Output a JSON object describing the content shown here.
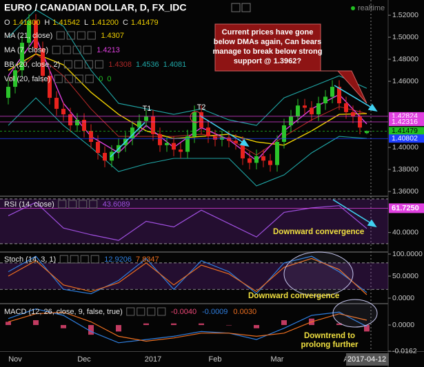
{
  "chart_data": [
    {
      "type": "candlestick",
      "title": "EURO / CANADIAN DOLLAR, D, FX_IDC",
      "status": "realtime",
      "ohlc_legend": [
        {
          "key": "O",
          "text": "1.41300"
        },
        {
          "key": "H",
          "text": "1.41542"
        },
        {
          "key": "L",
          "text": "1.41200"
        },
        {
          "key": "C",
          "text": "1.41479"
        }
      ],
      "categories": [
        null,
        "Nov",
        null,
        null,
        null,
        null,
        null,
        null,
        null,
        null,
        null,
        "Dec",
        null,
        null,
        null,
        null,
        null,
        null,
        null,
        null,
        null,
        "2017",
        null,
        null,
        null,
        null,
        null,
        null,
        null,
        null,
        "Feb",
        null,
        null,
        null,
        null,
        null,
        null,
        null,
        null,
        "Mar",
        null,
        null,
        null,
        null,
        null,
        null,
        null,
        null,
        null,
        "A",
        null,
        null,
        "2017-04-12"
      ],
      "open": [
        1.445,
        1.455,
        1.47,
        1.495,
        1.515,
        1.49,
        1.465,
        1.445,
        1.435,
        1.43,
        1.42,
        1.425,
        1.415,
        1.405,
        1.395,
        1.388,
        1.396,
        1.402,
        1.408,
        1.418,
        1.424,
        1.428,
        1.412,
        1.402,
        1.404,
        1.398,
        1.396,
        1.41,
        1.432,
        1.418,
        1.41,
        1.407,
        1.409,
        1.406,
        1.404,
        1.39,
        1.386,
        1.392,
        1.388,
        1.384,
        1.405,
        1.42,
        1.428,
        1.438,
        1.436,
        1.43,
        1.44,
        1.446,
        1.455,
        1.44,
        1.432,
        1.428,
        1.413
      ],
      "high": [
        1.461,
        1.476,
        1.501,
        1.521,
        1.521,
        1.496,
        1.471,
        1.451,
        1.441,
        1.436,
        1.431,
        1.431,
        1.421,
        1.411,
        1.401,
        1.402,
        1.408,
        1.414,
        1.424,
        1.43,
        1.434,
        1.434,
        1.418,
        1.41,
        1.41,
        1.404,
        1.416,
        1.438,
        1.438,
        1.424,
        1.416,
        1.415,
        1.415,
        1.412,
        1.41,
        1.396,
        1.398,
        1.398,
        1.394,
        1.411,
        1.426,
        1.434,
        1.444,
        1.444,
        1.442,
        1.446,
        1.452,
        1.461,
        1.461,
        1.446,
        1.438,
        1.434,
        1.41542
      ],
      "low": [
        1.439,
        1.449,
        1.464,
        1.489,
        1.484,
        1.459,
        1.439,
        1.429,
        1.424,
        1.414,
        1.414,
        1.409,
        1.399,
        1.389,
        1.382,
        1.382,
        1.39,
        1.396,
        1.402,
        1.412,
        1.418,
        1.406,
        1.396,
        1.396,
        1.392,
        1.39,
        1.39,
        1.404,
        1.412,
        1.404,
        1.401,
        1.401,
        1.4,
        1.398,
        1.384,
        1.38,
        1.38,
        1.382,
        1.378,
        1.378,
        1.399,
        1.414,
        1.422,
        1.43,
        1.424,
        1.424,
        1.434,
        1.44,
        1.434,
        1.426,
        1.422,
        1.412,
        1.412
      ],
      "close": [
        1.455,
        1.47,
        1.495,
        1.515,
        1.49,
        1.465,
        1.445,
        1.435,
        1.43,
        1.42,
        1.425,
        1.415,
        1.405,
        1.395,
        1.388,
        1.396,
        1.402,
        1.408,
        1.418,
        1.424,
        1.428,
        1.412,
        1.402,
        1.404,
        1.398,
        1.396,
        1.41,
        1.432,
        1.418,
        1.41,
        1.407,
        1.409,
        1.406,
        1.404,
        1.39,
        1.386,
        1.392,
        1.388,
        1.384,
        1.405,
        1.42,
        1.428,
        1.438,
        1.436,
        1.43,
        1.44,
        1.446,
        1.455,
        1.44,
        1.432,
        1.428,
        1.418,
        1.41479
      ],
      "up_color": "#2bc42b",
      "down_color": "#e8231e",
      "ylim": [
        1.3569,
        1.5338
      ],
      "yticks": [
        {
          "value": 1.52,
          "label": "1.52000"
        },
        {
          "value": 1.5,
          "label": "1.50000"
        },
        {
          "value": 1.48,
          "label": "1.48000"
        },
        {
          "value": 1.46,
          "label": "1.46000"
        },
        {
          "value": 1.4,
          "label": "1.40000"
        },
        {
          "value": 1.38,
          "label": "1.38000"
        },
        {
          "value": 1.36,
          "label": "1.36000"
        }
      ],
      "price_markers": [
        {
          "value": 1.42824,
          "label": "1.42824",
          "color": "#e040e0"
        },
        {
          "value": 1.42316,
          "label": "1.42316",
          "color": "#e040e0"
        },
        {
          "value": 1.41479,
          "label": "1.41479",
          "color": "#22c022"
        },
        {
          "value": 1.40802,
          "label": "1.40802",
          "color": "#2040ff"
        }
      ],
      "overlays": [
        {
          "name": "MA (21, close)",
          "color": "#f0d000",
          "values": [
            1.47,
            1.485,
            1.475,
            1.45,
            1.43,
            1.415,
            1.408,
            1.41,
            1.412,
            1.405,
            1.402,
            1.415,
            1.43,
            1.4307
          ],
          "legend_values": [
            "1.4307"
          ]
        },
        {
          "name": "MA (7, close)",
          "color": "#e040e0",
          "values": [
            1.465,
            1.5,
            1.44,
            1.41,
            1.395,
            1.42,
            1.4,
            1.418,
            1.407,
            1.388,
            1.415,
            1.435,
            1.448,
            1.4213
          ],
          "legend_values": [
            "1.4213"
          ]
        }
      ],
      "bands": {
        "name": "BB (20, close, 2)",
        "lines": [
          {
            "color": "#b02828",
            "values": [
              1.46,
              1.485,
              1.465,
              1.435,
              1.41,
              1.41,
              1.41,
              1.412,
              1.408,
              1.393,
              1.41,
              1.425,
              1.437,
              1.4308
            ],
            "legend": "1.4308"
          },
          {
            "color": "#20a8a8",
            "values": [
              1.5,
              1.525,
              1.51,
              1.47,
              1.44,
              1.435,
              1.43,
              1.435,
              1.425,
              1.42,
              1.445,
              1.455,
              1.465,
              1.4536
            ],
            "legend": "1.4536"
          },
          {
            "color": "#20a8a8",
            "values": [
              1.42,
              1.445,
              1.42,
              1.4,
              1.378,
              1.385,
              1.39,
              1.39,
              1.39,
              1.365,
              1.375,
              1.395,
              1.41,
              1.4081
            ],
            "legend": "1.4081"
          }
        ]
      },
      "volume": {
        "name": "Vol (20, false)",
        "legend_values": [
          "0",
          "0"
        ]
      },
      "annotations": {
        "callout": [
          "Current prices have gone",
          "below DMAs again, Can bears",
          "manage to break below strong",
          "support @ 1.3962?"
        ],
        "labels": [
          "T1",
          "T2"
        ]
      }
    },
    {
      "type": "line",
      "title": "RSI (14, close)",
      "color": "#a050e0",
      "values": [
        55,
        67,
        44,
        38,
        33,
        50,
        45,
        60,
        48,
        36,
        58,
        62,
        64,
        43.6089
      ],
      "legend_values": [
        "43.6089"
      ],
      "ylim": [
        23.2,
        71.2
      ],
      "yticks": [
        {
          "value": 40,
          "label": "40.0000"
        }
      ],
      "levels": [
        70,
        30
      ],
      "markers": [
        {
          "value": 61.725,
          "label": "61.7250",
          "color": "#e040e0"
        }
      ],
      "annotation": "Downward convergence"
    },
    {
      "type": "line",
      "title": "Stoch (14, 3, 1)",
      "series": [
        {
          "color": "#2f7fe0",
          "values": [
            60,
            95,
            20,
            10,
            40,
            90,
            20,
            85,
            60,
            10,
            80,
            95,
            60,
            12.9206
          ],
          "legend": "12.9206"
        },
        {
          "color": "#f07020",
          "values": [
            50,
            85,
            30,
            15,
            35,
            80,
            30,
            75,
            55,
            15,
            70,
            90,
            65,
            7.8347
          ],
          "legend": "7.8347"
        }
      ],
      "ylim": [
        -10.9,
        103.1
      ],
      "yticks": [
        {
          "value": 100,
          "label": "100.0000"
        },
        {
          "value": 50,
          "label": "50.0000"
        },
        {
          "value": 0,
          "label": "0.0000"
        }
      ],
      "levels": [
        80,
        20
      ],
      "annotation": "Downward convergence"
    },
    {
      "type": "macd",
      "title": "MACD (12, 26, close, 9, false, true)",
      "histogram": {
        "color": "#f04878",
        "values": [
          0.002,
          0.003,
          -0.002,
          -0.006,
          -0.004,
          0.001,
          0.001,
          0.001,
          0,
          -0.002,
          0.003,
          0.004,
          0.001,
          -0.004
        ],
        "legend": "-0.0040"
      },
      "series": [
        {
          "color": "#2f7fe0",
          "values": [
            0.004,
            0.01,
            0.006,
            -0.004,
            -0.011,
            -0.009,
            -0.007,
            -0.004,
            -0.005,
            -0.009,
            -0.002,
            0.006,
            0.008,
            -0.0009
          ],
          "legend": "-0.0009"
        },
        {
          "color": "#f07020",
          "values": [
            0.002,
            0.007,
            0.008,
            0.002,
            -0.007,
            -0.01,
            -0.008,
            -0.005,
            -0.005,
            -0.007,
            -0.005,
            0.002,
            0.007,
            0.003
          ],
          "legend": "0.0030"
        }
      ],
      "ylim": [
        -0.0162,
        0.0124
      ],
      "yticks": [
        {
          "value": 0,
          "label": "0.0000"
        },
        -0.0162
      ],
      "annotation": [
        "Downtrend to",
        "prolong further"
      ]
    }
  ]
}
